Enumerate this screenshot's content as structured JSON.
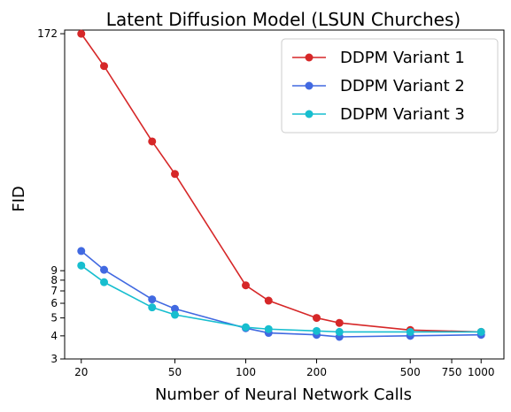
{
  "chart_data": {
    "type": "line",
    "title": "Latent Diffusion Model (LSUN Churches)",
    "xlabel": "Number of Neural Network Calls",
    "ylabel": "FID",
    "xscale": "log",
    "yscale": "log",
    "xlim": [
      17,
      1250
    ],
    "ylim": [
      3,
      180
    ],
    "xticks": [
      20,
      50,
      100,
      200,
      500,
      750,
      1000
    ],
    "yticks": [
      3,
      4,
      5,
      6,
      7,
      8,
      9,
      172
    ],
    "grid": false,
    "legend_position": "top-right",
    "series": [
      {
        "name": "DDPM Variant 1",
        "color": "#d62728",
        "x": [
          20,
          25,
          40,
          50,
          100,
          125,
          200,
          250,
          500,
          1000
        ],
        "y": [
          172,
          115,
          45,
          30,
          7.5,
          6.2,
          5.0,
          4.7,
          4.3,
          4.2
        ]
      },
      {
        "name": "DDPM Variant 2",
        "color": "#4169e1",
        "x": [
          20,
          25,
          40,
          50,
          100,
          125,
          200,
          250,
          500,
          1000
        ],
        "y": [
          11.5,
          9.1,
          6.3,
          5.6,
          4.4,
          4.15,
          4.05,
          3.95,
          4.0,
          4.05
        ]
      },
      {
        "name": "DDPM Variant 3",
        "color": "#17becf",
        "x": [
          20,
          25,
          40,
          50,
          100,
          125,
          200,
          250,
          500,
          1000
        ],
        "y": [
          9.6,
          7.8,
          5.7,
          5.2,
          4.45,
          4.35,
          4.25,
          4.2,
          4.2,
          4.2
        ]
      }
    ]
  }
}
